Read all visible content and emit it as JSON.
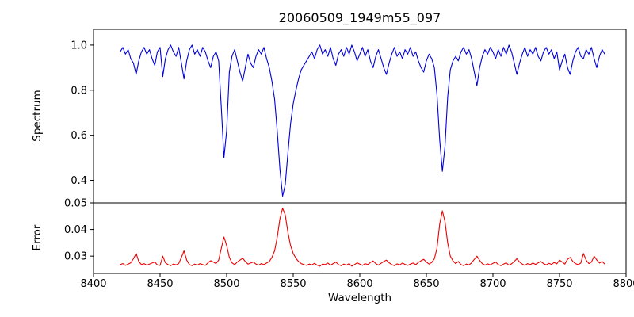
{
  "chart_data": {
    "type": "line",
    "title": "20060509_1949m55_097",
    "xlabel": "Wavelength",
    "xlim": [
      8400,
      8800
    ],
    "x_start": 8420,
    "x_step": 2,
    "grid": false,
    "legend": "none",
    "x_ticks": [
      {
        "v": 8400,
        "label": "8400"
      },
      {
        "v": 8450,
        "label": "8450"
      },
      {
        "v": 8500,
        "label": "8500"
      },
      {
        "v": 8550,
        "label": "8550"
      },
      {
        "v": 8600,
        "label": "8600"
      },
      {
        "v": 8650,
        "label": "8650"
      },
      {
        "v": 8700,
        "label": "8700"
      },
      {
        "v": 8750,
        "label": "8750"
      },
      {
        "v": 8800,
        "label": "8800"
      }
    ],
    "panels": [
      {
        "name": "spectrum",
        "ylabel": "Spectrum",
        "color": "#0000dd",
        "ylim": [
          0.3,
          1.07
        ],
        "y_ticks": [
          {
            "v": 0.4,
            "label": "0.4"
          },
          {
            "v": 0.6,
            "label": "0.6"
          },
          {
            "v": 0.8,
            "label": "0.8"
          },
          {
            "v": 1.0,
            "label": "1.0"
          }
        ],
        "absorption_lines": [
          {
            "x": 8498,
            "depth": 0.5
          },
          {
            "x": 8542,
            "depth": 0.33
          },
          {
            "x": 8662,
            "depth": 0.44
          }
        ],
        "values": [
          0.97,
          0.99,
          0.96,
          0.98,
          0.94,
          0.92,
          0.87,
          0.93,
          0.97,
          0.99,
          0.96,
          0.98,
          0.94,
          0.91,
          0.97,
          0.99,
          0.86,
          0.94,
          0.98,
          1.0,
          0.97,
          0.95,
          0.99,
          0.92,
          0.85,
          0.93,
          0.98,
          1.0,
          0.96,
          0.98,
          0.95,
          0.99,
          0.97,
          0.93,
          0.9,
          0.95,
          0.97,
          0.93,
          0.72,
          0.5,
          0.62,
          0.88,
          0.95,
          0.98,
          0.93,
          0.88,
          0.84,
          0.9,
          0.96,
          0.92,
          0.9,
          0.95,
          0.98,
          0.96,
          0.99,
          0.94,
          0.9,
          0.84,
          0.76,
          0.62,
          0.45,
          0.33,
          0.38,
          0.52,
          0.65,
          0.74,
          0.8,
          0.85,
          0.89,
          0.91,
          0.93,
          0.95,
          0.97,
          0.94,
          0.98,
          1.0,
          0.96,
          0.98,
          0.95,
          0.99,
          0.94,
          0.91,
          0.96,
          0.98,
          0.95,
          0.99,
          0.96,
          1.0,
          0.97,
          0.93,
          0.96,
          0.99,
          0.95,
          0.98,
          0.93,
          0.9,
          0.95,
          0.98,
          0.94,
          0.9,
          0.87,
          0.92,
          0.96,
          0.99,
          0.95,
          0.97,
          0.94,
          0.98,
          0.96,
          0.99,
          0.95,
          0.97,
          0.93,
          0.9,
          0.88,
          0.93,
          0.96,
          0.94,
          0.9,
          0.78,
          0.58,
          0.44,
          0.55,
          0.77,
          0.89,
          0.93,
          0.95,
          0.93,
          0.97,
          0.99,
          0.96,
          0.98,
          0.94,
          0.88,
          0.82,
          0.9,
          0.95,
          0.98,
          0.96,
          0.99,
          0.97,
          0.94,
          0.98,
          0.95,
          0.99,
          0.96,
          1.0,
          0.97,
          0.92,
          0.87,
          0.92,
          0.96,
          0.99,
          0.95,
          0.98,
          0.96,
          0.99,
          0.95,
          0.93,
          0.97,
          0.99,
          0.96,
          0.98,
          0.94,
          0.97,
          0.89,
          0.93,
          0.96,
          0.9,
          0.87,
          0.93,
          0.97,
          0.99,
          0.95,
          0.94,
          0.98,
          0.96,
          0.99,
          0.94,
          0.9,
          0.95,
          0.98,
          0.96
        ]
      },
      {
        "name": "error",
        "ylabel": "Error",
        "color": "#ee0000",
        "ylim": [
          0.0235,
          0.05
        ],
        "y_ticks": [
          {
            "v": 0.03,
            "label": "0.03"
          },
          {
            "v": 0.04,
            "label": "0.04"
          },
          {
            "v": 0.05,
            "label": "0.05"
          }
        ],
        "peaks": [
          {
            "x": 8498,
            "height": 0.037
          },
          {
            "x": 8542,
            "height": 0.048
          },
          {
            "x": 8662,
            "height": 0.047
          }
        ],
        "values": [
          0.0268,
          0.0272,
          0.0265,
          0.027,
          0.0275,
          0.029,
          0.031,
          0.028,
          0.0268,
          0.0272,
          0.0266,
          0.027,
          0.0274,
          0.0278,
          0.0267,
          0.0265,
          0.03,
          0.0275,
          0.0268,
          0.0264,
          0.027,
          0.0267,
          0.0272,
          0.0295,
          0.032,
          0.0285,
          0.0268,
          0.0264,
          0.027,
          0.0266,
          0.0272,
          0.0268,
          0.0265,
          0.0275,
          0.0283,
          0.0278,
          0.0272,
          0.0285,
          0.033,
          0.0372,
          0.034,
          0.0295,
          0.0275,
          0.0268,
          0.0278,
          0.0285,
          0.0292,
          0.028,
          0.027,
          0.0274,
          0.0278,
          0.027,
          0.0266,
          0.0272,
          0.0268,
          0.0274,
          0.028,
          0.0295,
          0.032,
          0.037,
          0.044,
          0.048,
          0.0455,
          0.039,
          0.034,
          0.031,
          0.0292,
          0.028,
          0.0272,
          0.0268,
          0.0265,
          0.027,
          0.0267,
          0.0273,
          0.0266,
          0.0262,
          0.027,
          0.0268,
          0.0274,
          0.0266,
          0.0272,
          0.0278,
          0.0268,
          0.0264,
          0.027,
          0.0266,
          0.0272,
          0.0262,
          0.0268,
          0.0275,
          0.027,
          0.0265,
          0.0272,
          0.0268,
          0.0276,
          0.0282,
          0.0272,
          0.0266,
          0.0273,
          0.028,
          0.0285,
          0.0275,
          0.0268,
          0.0264,
          0.0271,
          0.0267,
          0.0274,
          0.0269,
          0.0265,
          0.027,
          0.0274,
          0.0268,
          0.0276,
          0.0283,
          0.0288,
          0.0278,
          0.027,
          0.0276,
          0.029,
          0.033,
          0.042,
          0.047,
          0.043,
          0.035,
          0.03,
          0.0282,
          0.0272,
          0.028,
          0.0268,
          0.0264,
          0.027,
          0.0267,
          0.0275,
          0.0288,
          0.03,
          0.0284,
          0.0272,
          0.0266,
          0.0271,
          0.0267,
          0.0273,
          0.0278,
          0.0268,
          0.0264,
          0.027,
          0.0275,
          0.0266,
          0.0271,
          0.028,
          0.029,
          0.0278,
          0.027,
          0.0265,
          0.0272,
          0.0268,
          0.0274,
          0.0269,
          0.0275,
          0.028,
          0.0272,
          0.0267,
          0.0273,
          0.0269,
          0.0276,
          0.0271,
          0.0285,
          0.0278,
          0.027,
          0.0288,
          0.0295,
          0.028,
          0.0272,
          0.0268,
          0.0274,
          0.031,
          0.0285,
          0.0272,
          0.0278,
          0.03,
          0.0286,
          0.0274,
          0.028,
          0.027
        ]
      }
    ]
  }
}
